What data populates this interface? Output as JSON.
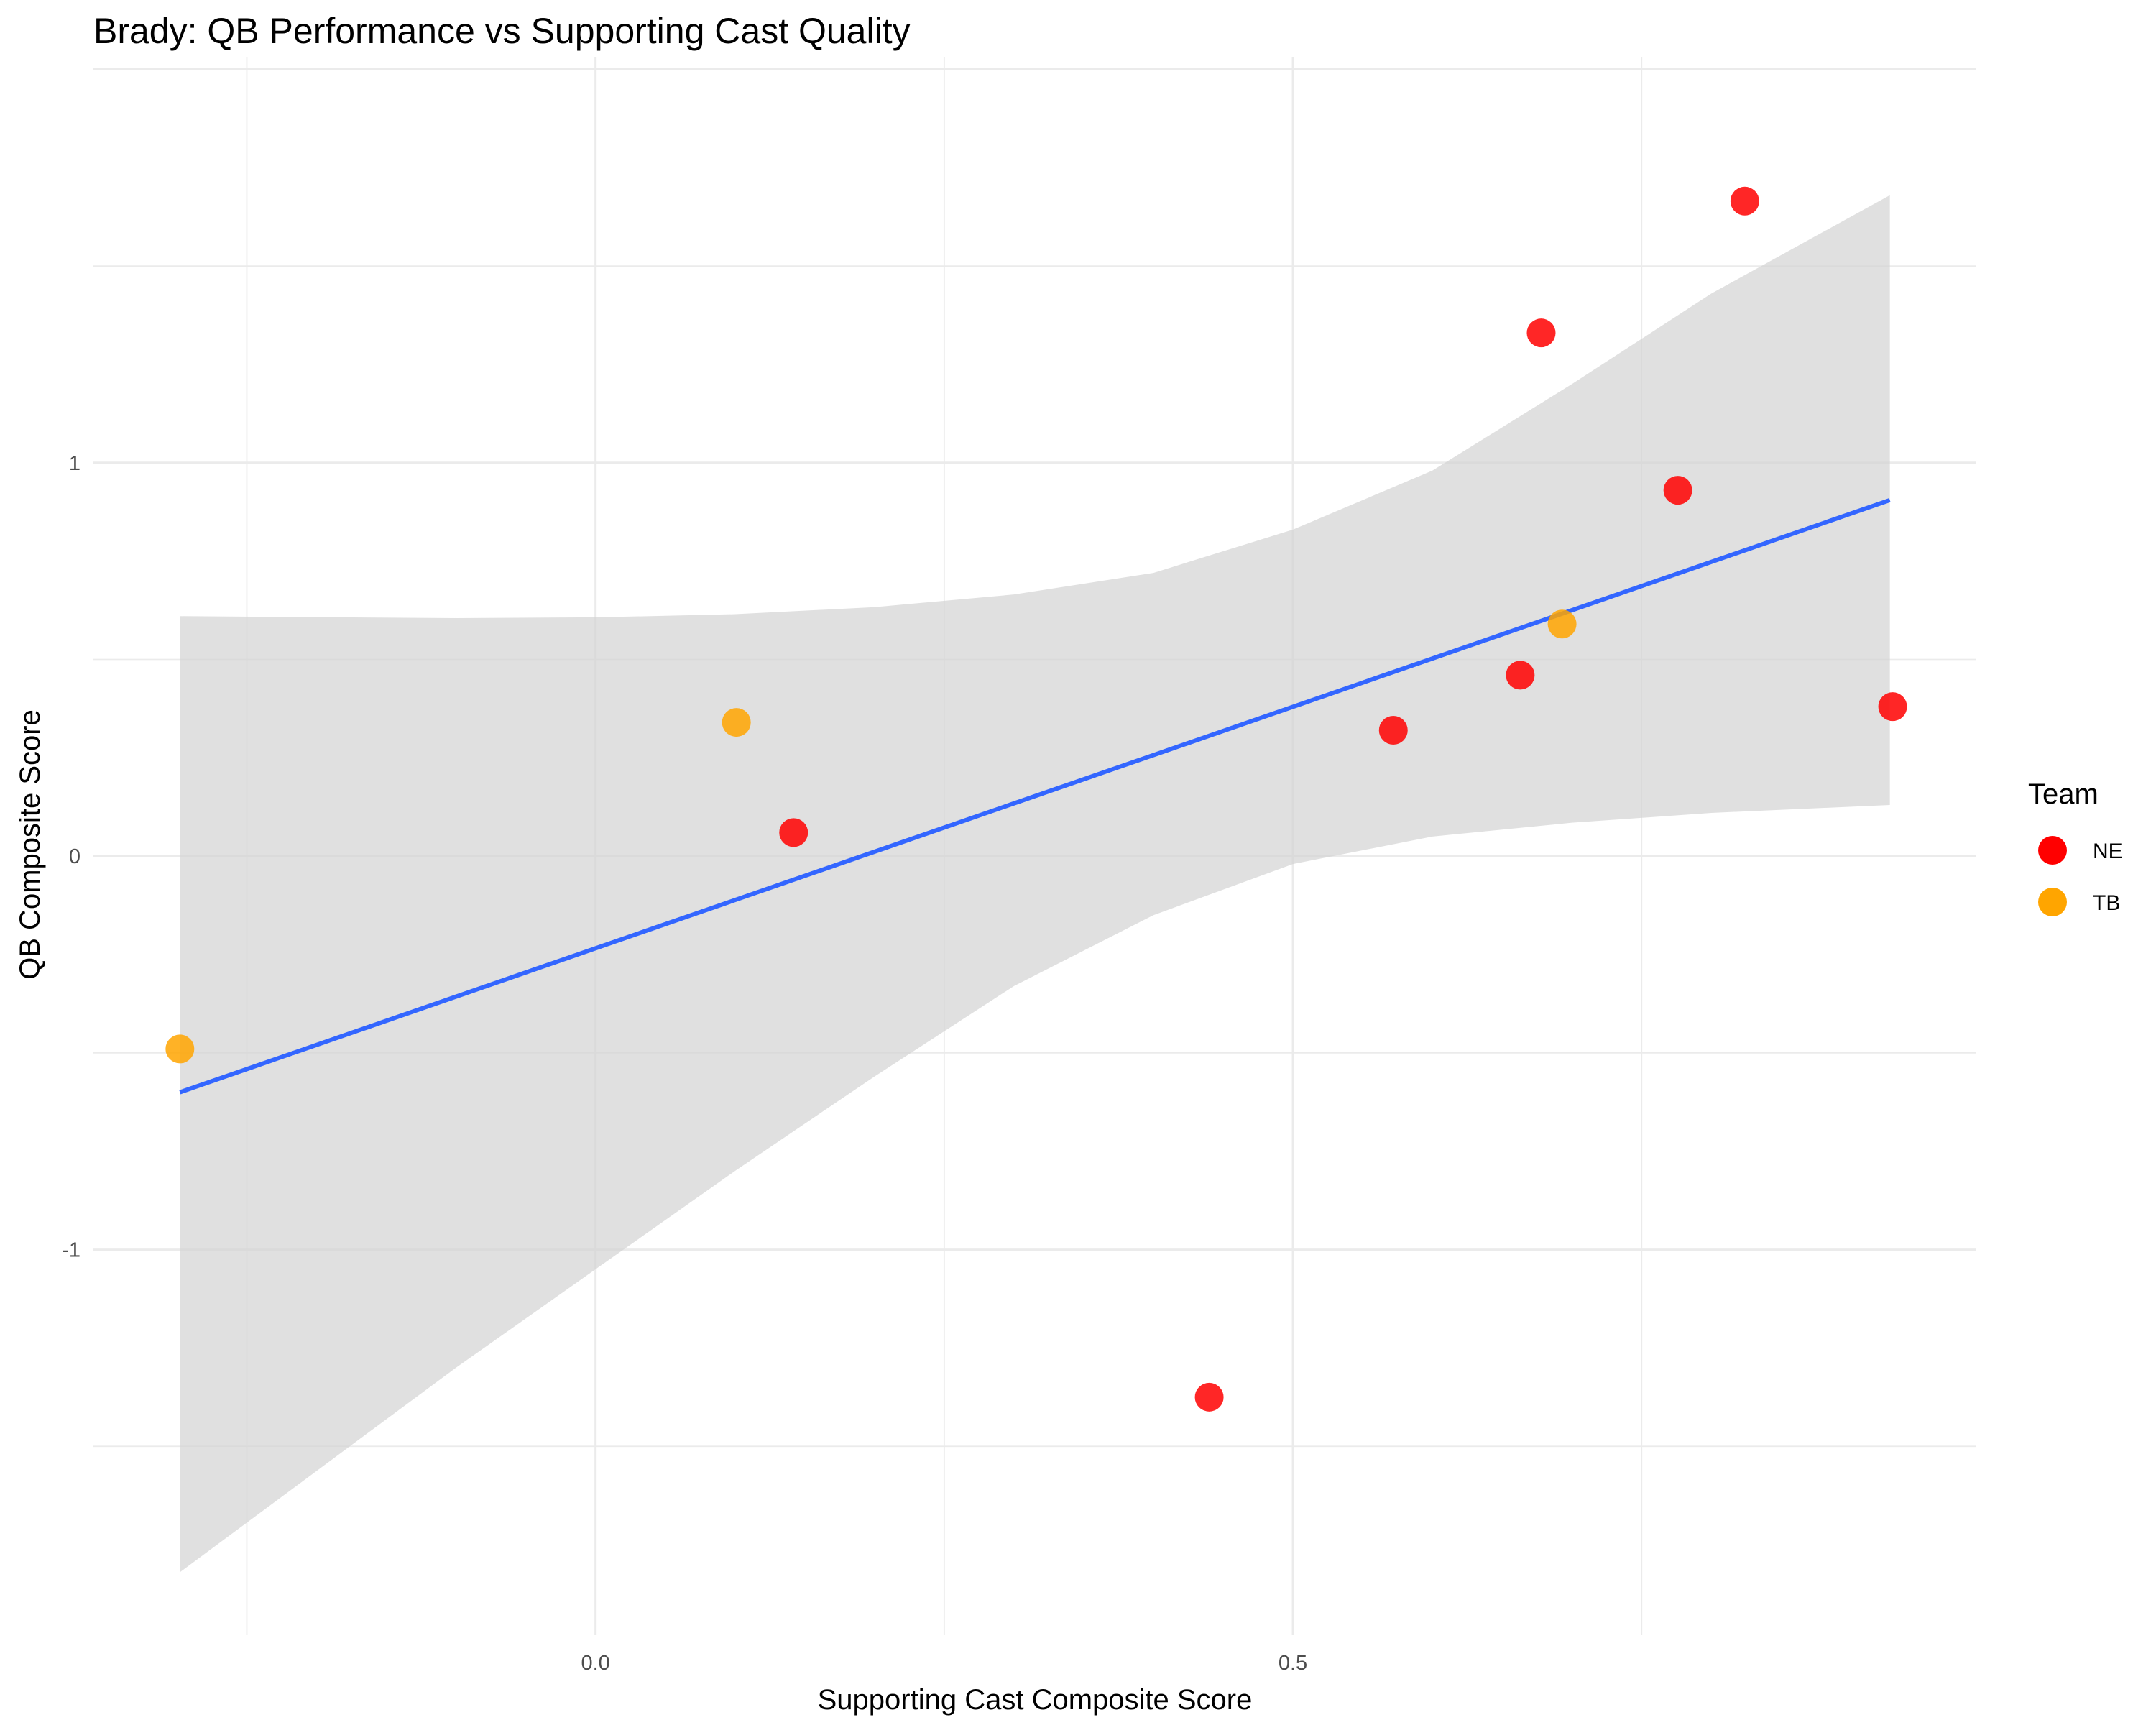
{
  "chart_data": {
    "type": "scatter",
    "title": "Brady: QB Performance vs Supporting Cast Quality",
    "xlabel": "Supporting Cast Composite Score",
    "ylabel": "QB Composite Score",
    "xlim": [
      -0.36,
      0.99
    ],
    "ylim": [
      -1.98,
      2.03
    ],
    "x_ticks": [
      {
        "value": 0.0,
        "label": "0.0"
      },
      {
        "value": 0.5,
        "label": "0.5"
      }
    ],
    "y_ticks": [
      {
        "value": -1,
        "label": "-1"
      },
      {
        "value": 0,
        "label": "0"
      },
      {
        "value": 1,
        "label": "1"
      }
    ],
    "grid": true,
    "series": [
      {
        "name": "NE",
        "color": "#ff0000",
        "points": [
          {
            "x": 0.142,
            "y": 0.06
          },
          {
            "x": 0.44,
            "y": -1.375
          },
          {
            "x": 0.572,
            "y": 0.32
          },
          {
            "x": 0.663,
            "y": 0.46
          },
          {
            "x": 0.678,
            "y": 1.33
          },
          {
            "x": 0.776,
            "y": 0.93
          },
          {
            "x": 0.824,
            "y": 1.665
          },
          {
            "x": 0.93,
            "y": 0.38
          }
        ]
      },
      {
        "name": "TB",
        "color": "#ffa500",
        "points": [
          {
            "x": -0.298,
            "y": -0.49
          },
          {
            "x": 0.101,
            "y": 0.34
          },
          {
            "x": 0.693,
            "y": 0.59
          }
        ]
      }
    ],
    "trend_line": {
      "color": "#3366ff",
      "x_start": -0.298,
      "y_start": -0.6,
      "x_end": 0.928,
      "y_end": 0.905
    },
    "confidence_band": {
      "color": "#d3d3d3",
      "x": [
        -0.298,
        -0.1,
        0.0,
        0.1,
        0.2,
        0.3,
        0.4,
        0.5,
        0.6,
        0.7,
        0.8,
        0.928
      ],
      "upper": [
        0.61,
        0.605,
        0.607,
        0.615,
        0.633,
        0.665,
        0.72,
        0.83,
        0.98,
        1.2,
        1.43,
        1.68
      ],
      "lower": [
        -1.82,
        -1.3,
        -1.05,
        -0.8,
        -0.56,
        -0.33,
        -0.15,
        -0.02,
        0.05,
        0.085,
        0.11,
        0.13
      ]
    },
    "legend": {
      "title": "Team",
      "position": "right",
      "items": [
        {
          "label": "NE",
          "color": "#ff0000"
        },
        {
          "label": "TB",
          "color": "#ffa500"
        }
      ]
    }
  }
}
